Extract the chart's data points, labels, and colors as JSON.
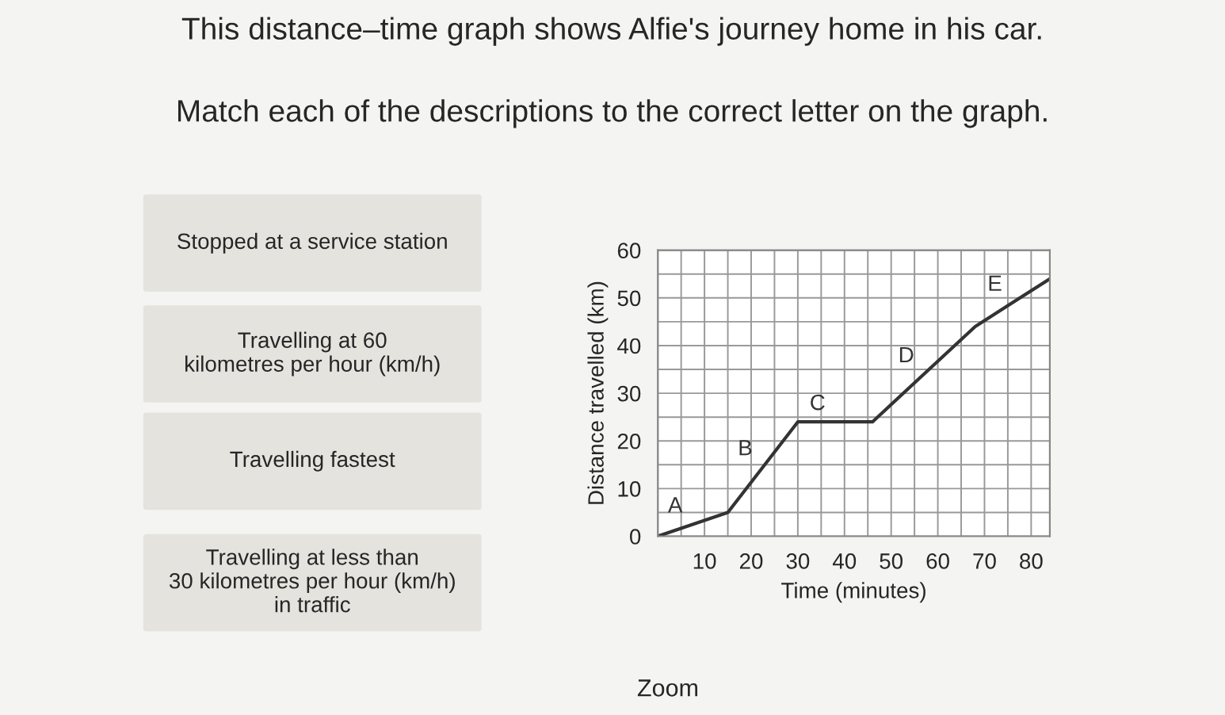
{
  "chart_data": {
    "type": "line",
    "title": "This distance–time graph shows Alfie's journey home in his car.",
    "subtitle": "Match each of the descriptions to the correct letter on the graph.",
    "xlabel": "Time (minutes)",
    "ylabel": "Distance travelled (km)",
    "x": [
      0,
      15,
      30,
      46,
      68,
      84
    ],
    "series": [
      {
        "color": "#333333",
        "values": [
          0,
          5,
          24,
          24,
          44,
          54
        ]
      }
    ],
    "xlim": [
      0,
      84
    ],
    "ylim": [
      0,
      60
    ],
    "xticks": [
      10,
      20,
      30,
      40,
      50,
      60,
      70,
      80
    ],
    "yticks": [
      0,
      10,
      20,
      30,
      40,
      50,
      60
    ],
    "grid": true,
    "marker": "none",
    "line_style": "solid",
    "annotations": [
      "A",
      "B",
      "C",
      "D",
      "E",
      "Stopped at a service station",
      "Travelling at 60\nkilometres per hour (km/h)",
      "Travelling fastest",
      "Travelling at less than\n30 kilometres per hour (km/h)\nin traffic",
      "Zoom"
    ]
  }
}
